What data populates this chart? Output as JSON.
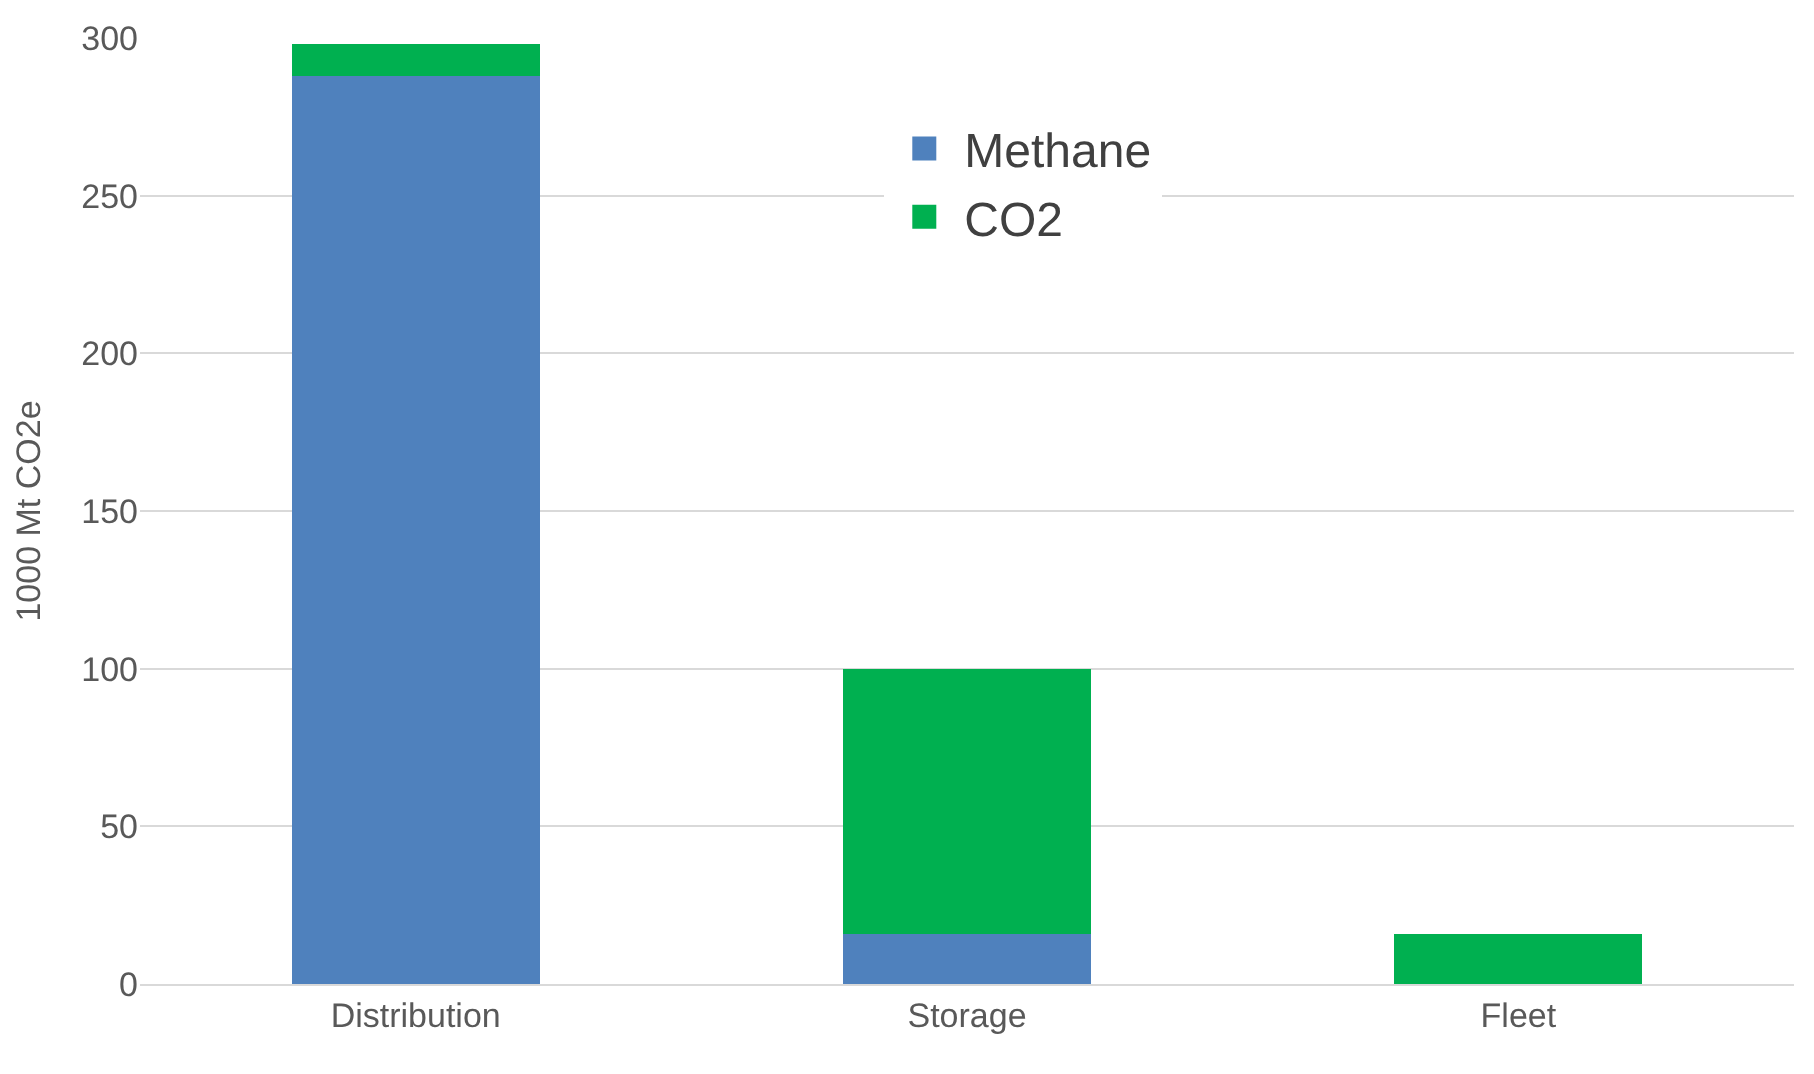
{
  "chart_data": {
    "type": "bar",
    "stacked": true,
    "ylabel": "1000 Mt CO2e",
    "categories": [
      "Distribution",
      "Storage",
      "Fleet"
    ],
    "series": [
      {
        "name": "Methane",
        "color": "#4f81bd",
        "values": [
          288,
          16,
          0
        ]
      },
      {
        "name": "CO2",
        "color": "#00b050",
        "values": [
          10,
          84,
          16
        ]
      }
    ],
    "ylim": [
      0,
      300
    ],
    "yticks": [
      0,
      50,
      100,
      150,
      200,
      250,
      300
    ],
    "grid": "y",
    "legend": "top"
  }
}
